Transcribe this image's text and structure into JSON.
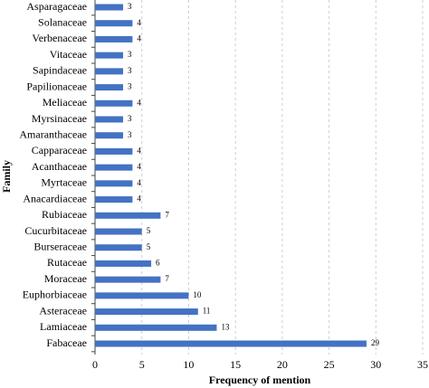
{
  "chart_data": {
    "type": "bar",
    "orientation": "horizontal",
    "x_label": "Frequency of mention",
    "y_label": "Family",
    "categories": [
      "Asparagaceae",
      "Solanaceae",
      "Verbenaceae",
      "Vitaceae",
      "Sapindaceae",
      "Papilionaceae",
      "Meliaceae",
      "Myrsinaceae",
      "Amaranthaceae",
      "Capparaceae",
      "Acanthaceae",
      "Myrtaceae",
      "Anacardiaceae",
      "Rubiaceae",
      "Cucurbitaceae",
      "Burseraceae",
      "Rutaceae",
      "Moraceae",
      "Euphorbiaceae",
      "Asteraceae",
      "Lamiaceae",
      "Fabaceae"
    ],
    "values": [
      3,
      4,
      4,
      3,
      3,
      3,
      4,
      3,
      3,
      4,
      4,
      4,
      4,
      7,
      5,
      5,
      6,
      7,
      10,
      11,
      13,
      29
    ],
    "color": "#4472c4",
    "xlim": [
      0,
      35
    ],
    "xticks": [
      0,
      5,
      10,
      15,
      20,
      25,
      30,
      35
    ],
    "grid": true
  }
}
